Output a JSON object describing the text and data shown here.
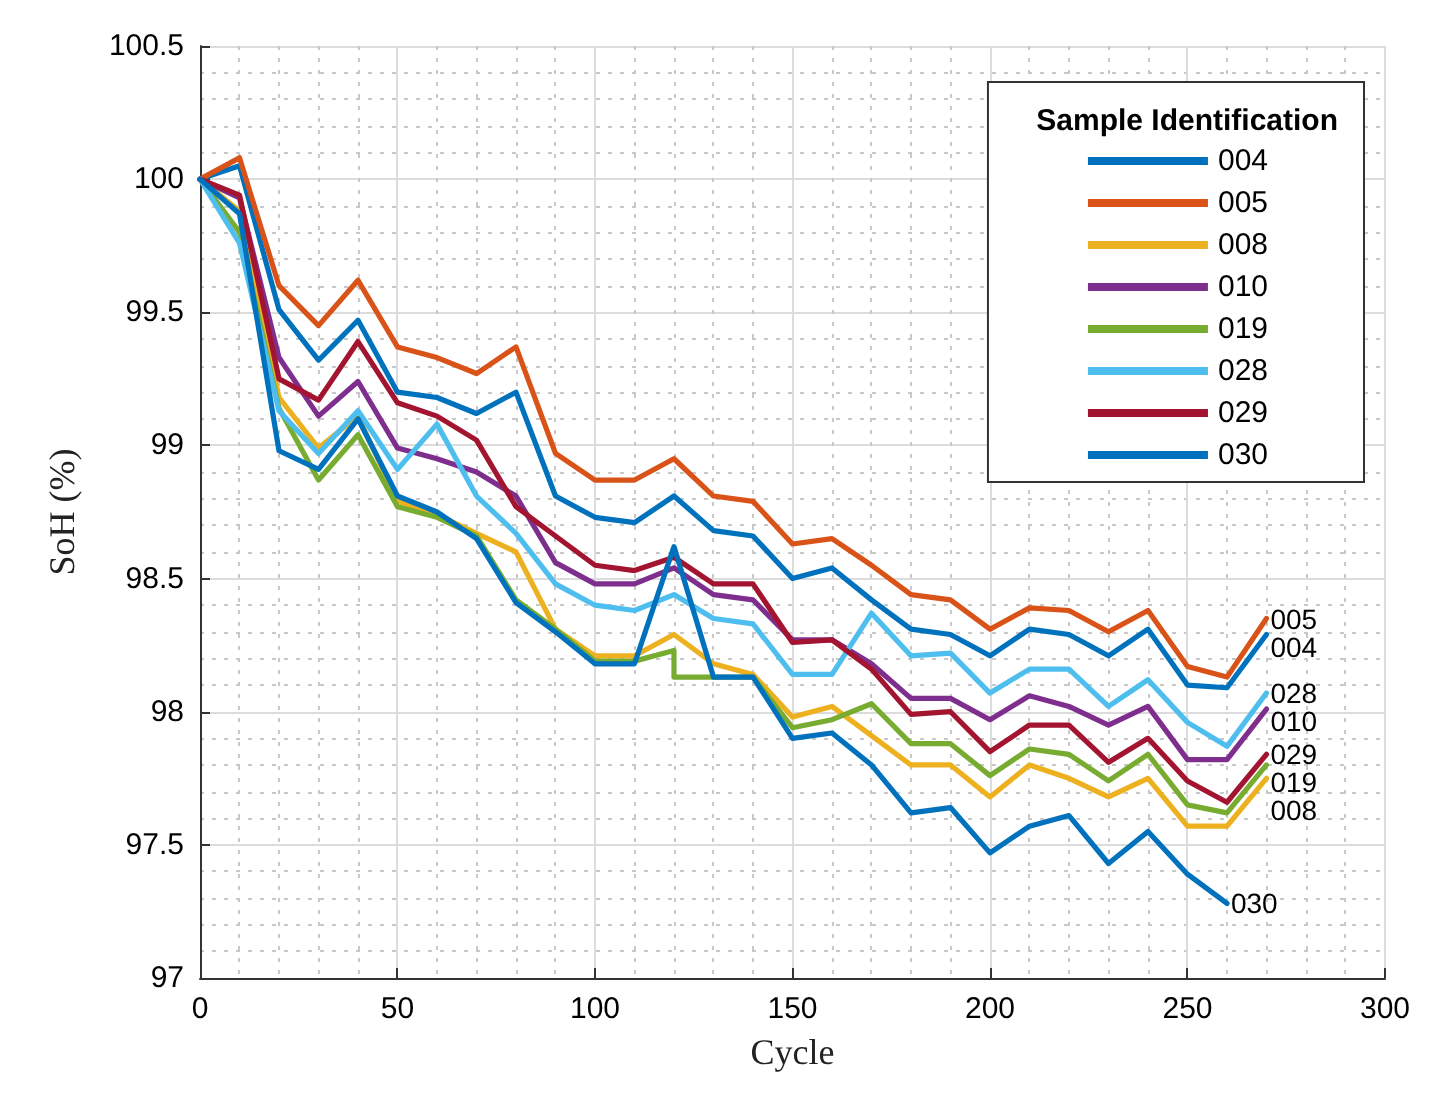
{
  "chart_data": {
    "type": "line",
    "xlabel": "Cycle",
    "ylabel": "SoH (%)",
    "legend_title": "Sample Identification",
    "xlim": [
      0,
      300
    ],
    "xticks": [
      0,
      50,
      100,
      150,
      200,
      250,
      300
    ],
    "ylim": [
      97,
      100.5
    ],
    "yticks": [
      97,
      97.5,
      98,
      98.5,
      99,
      99.5,
      100,
      100.5
    ],
    "grid": true,
    "legend": "top right",
    "marker": "none",
    "line_style": "solid",
    "x": [
      0,
      10,
      20,
      30,
      40,
      50,
      60,
      70,
      80,
      90,
      100,
      110,
      120,
      130,
      140,
      150,
      160,
      170,
      180,
      190,
      200,
      210,
      220,
      230,
      240,
      250,
      260,
      270
    ],
    "series": [
      {
        "name": "004",
        "color": "#0072bd",
        "values": [
          100,
          100.05,
          99.51,
          99.32,
          99.47,
          99.2,
          99.18,
          99.12,
          99.2,
          98.81,
          98.73,
          98.71,
          98.81,
          98.68,
          98.66,
          98.5,
          98.54,
          98.42,
          98.31,
          98.29,
          98.21,
          98.31,
          98.29,
          98.21,
          98.31,
          98.1,
          98.09,
          98.29
        ]
      },
      {
        "name": "005",
        "color": "#d95319",
        "values": [
          100,
          100.08,
          99.6,
          99.45,
          99.62,
          99.37,
          99.33,
          99.27,
          99.37,
          98.97,
          98.87,
          98.87,
          98.95,
          98.81,
          98.79,
          98.63,
          98.65,
          98.55,
          98.44,
          98.42,
          98.31,
          98.39,
          98.38,
          98.3,
          98.38,
          98.17,
          98.13,
          98.35
        ]
      },
      {
        "name": "008",
        "color": "#edb120",
        "values": [
          100,
          99.88,
          99.18,
          98.99,
          99.11,
          98.79,
          98.74,
          98.67,
          98.6,
          98.31,
          98.21,
          98.21,
          98.29,
          98.18,
          98.14,
          97.98,
          98.02,
          97.91,
          97.8,
          97.8,
          97.68,
          97.8,
          97.75,
          97.68,
          97.75,
          97.57,
          97.57,
          97.75
        ]
      },
      {
        "name": "010",
        "color": "#7e2f8e",
        "values": [
          100,
          99.93,
          99.33,
          99.11,
          99.24,
          98.99,
          98.95,
          98.9,
          98.81,
          98.56,
          98.48,
          98.48,
          98.54,
          98.44,
          98.42,
          98.27,
          98.27,
          98.18,
          98.05,
          98.05,
          97.97,
          98.06,
          98.02,
          97.95,
          98.02,
          97.82,
          97.82,
          98.01
        ]
      },
      {
        "name": "019",
        "color": "#77ac30",
        "x": [
          0,
          10,
          20,
          30,
          40,
          50,
          60,
          70,
          80,
          90,
          100,
          110,
          120,
          120,
          130,
          140,
          150,
          160,
          170,
          180,
          190,
          200,
          210,
          220,
          230,
          240,
          250,
          260,
          270
        ],
        "values": [
          100,
          99.8,
          99.14,
          98.87,
          99.04,
          98.77,
          98.73,
          98.66,
          98.42,
          98.31,
          98.19,
          98.19,
          98.23,
          98.13,
          98.13,
          98.13,
          97.94,
          97.97,
          98.03,
          97.88,
          97.88,
          97.76,
          97.86,
          97.84,
          97.74,
          97.84,
          97.65,
          97.62,
          97.8
        ]
      },
      {
        "name": "028",
        "color": "#4dbeee",
        "values": [
          100,
          99.76,
          99.13,
          98.97,
          99.13,
          98.91,
          99.08,
          98.81,
          98.67,
          98.48,
          98.4,
          98.38,
          98.44,
          98.35,
          98.33,
          98.14,
          98.14,
          98.37,
          98.21,
          98.22,
          98.07,
          98.16,
          98.16,
          98.02,
          98.12,
          97.96,
          97.87,
          98.07
        ]
      },
      {
        "name": "029",
        "color": "#a2142f",
        "values": [
          100,
          99.94,
          99.25,
          99.17,
          99.39,
          99.16,
          99.11,
          99.02,
          98.77,
          98.66,
          98.55,
          98.53,
          98.58,
          98.48,
          98.48,
          98.26,
          98.27,
          98.16,
          97.99,
          98.0,
          97.85,
          97.95,
          97.95,
          97.81,
          97.9,
          97.74,
          97.66,
          97.84
        ]
      },
      {
        "name": "030",
        "color": "#0072bd",
        "x": [
          0,
          10,
          20,
          30,
          40,
          50,
          60,
          70,
          80,
          90,
          100,
          110,
          120,
          130,
          140,
          150,
          160,
          170,
          180,
          190,
          200,
          210,
          220,
          230,
          240,
          250,
          260
        ],
        "values": [
          100,
          99.87,
          98.98,
          98.91,
          99.1,
          98.81,
          98.75,
          98.65,
          98.41,
          98.3,
          98.18,
          98.18,
          98.62,
          98.13,
          98.13,
          97.9,
          97.92,
          97.8,
          97.62,
          97.64,
          97.47,
          97.57,
          97.61,
          97.43,
          97.55,
          97.39,
          97.28
        ]
      }
    ]
  }
}
